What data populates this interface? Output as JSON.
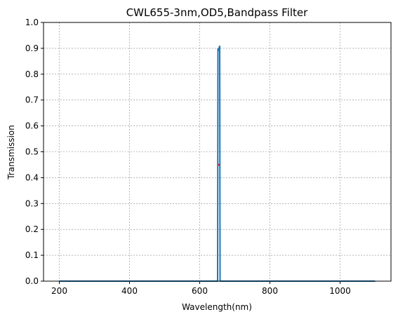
{
  "chart_data": {
    "type": "line",
    "title": "CWL655-3nm,OD5,Bandpass Filter",
    "x_label": "Wavelength(nm)",
    "y_label": "Transmission",
    "x": [
      200,
      651,
      652,
      653,
      654,
      655,
      656,
      657,
      658,
      1100
    ],
    "series": [
      {
        "name": "Transmission",
        "color": "#1f77b4",
        "values": [
          0,
          0,
          0.9,
          0.89,
          0.895,
          0.9,
          0.905,
          0.91,
          0,
          0
        ]
      }
    ],
    "points": [
      {
        "x": 655,
        "y": 0.45,
        "color": "#d62728"
      }
    ],
    "xlim": [
      155,
      1145
    ],
    "ylim": [
      0,
      1
    ],
    "xticks": [
      200,
      400,
      600,
      800,
      1000
    ],
    "yticks": [
      {
        "value": 0,
        "label": "0.0"
      },
      0.1,
      0.2,
      0.3,
      0.4,
      0.5,
      0.6,
      0.7,
      0.8,
      0.9,
      {
        "value": 1,
        "label": "1.0"
      }
    ],
    "grid": true
  }
}
